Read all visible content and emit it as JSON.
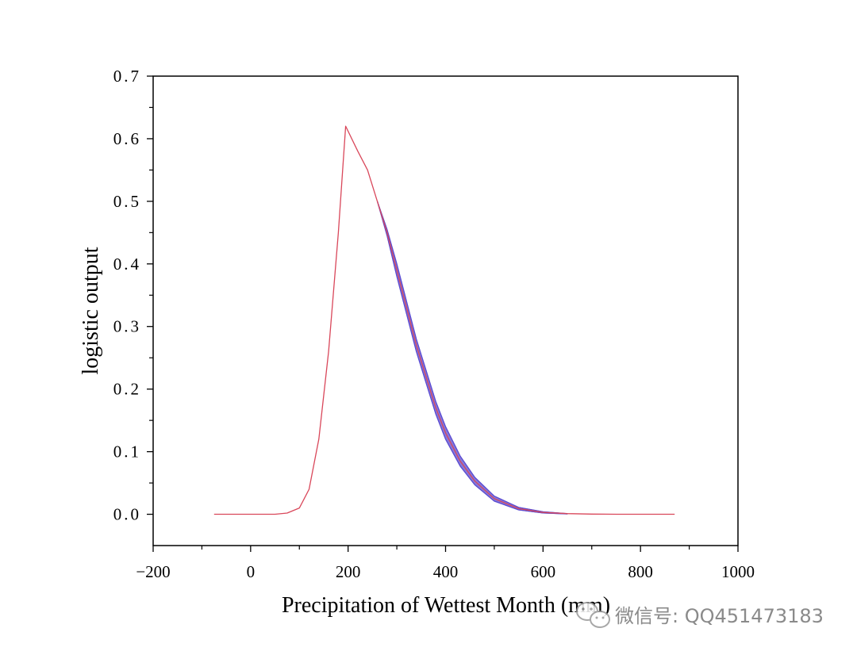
{
  "chart_data": {
    "type": "line",
    "title": "",
    "xlabel": "Precipitation of Wettest Month (mm)",
    "ylabel": "logistic output",
    "xlim": [
      -200,
      1000
    ],
    "ylim": [
      -0.05,
      0.7
    ],
    "x_ticks": [
      -200,
      0,
      200,
      400,
      600,
      800,
      1000
    ],
    "x_tick_labels": [
      "−200",
      "0",
      "200",
      "400",
      "600",
      "800",
      "1000"
    ],
    "y_ticks": [
      0.0,
      0.1,
      0.2,
      0.3,
      0.4,
      0.5,
      0.6,
      0.7
    ],
    "y_tick_labels": [
      "0.0",
      "0.1",
      "0.2",
      "0.3",
      "0.4",
      "0.5",
      "0.6",
      "0.7"
    ],
    "grid": false,
    "legend": "none",
    "series": [
      {
        "role": "mean",
        "color": "#d9475a",
        "x": [
          -75,
          0,
          50,
          75,
          100,
          120,
          140,
          160,
          180,
          195,
          220,
          240,
          260,
          280,
          300,
          320,
          340,
          360,
          380,
          400,
          430,
          460,
          500,
          550,
          600,
          650,
          700,
          750,
          800,
          870
        ],
        "y": [
          0.0,
          0.0,
          0.0,
          0.002,
          0.01,
          0.04,
          0.12,
          0.26,
          0.45,
          0.62,
          0.58,
          0.55,
          0.5,
          0.45,
          0.39,
          0.33,
          0.27,
          0.22,
          0.17,
          0.13,
          0.085,
          0.053,
          0.025,
          0.009,
          0.003,
          0.001,
          0.0003,
          0.0001,
          0.0,
          0.0
        ]
      },
      {
        "role": "upper",
        "color": "#5b4bd0",
        "x": [
          260,
          280,
          300,
          320,
          340,
          360,
          380,
          400,
          430,
          460,
          500,
          550,
          600,
          650
        ],
        "y": [
          0.5,
          0.455,
          0.4,
          0.34,
          0.28,
          0.23,
          0.18,
          0.14,
          0.093,
          0.059,
          0.029,
          0.011,
          0.004,
          0.001
        ]
      },
      {
        "role": "lower",
        "color": "#5b4bd0",
        "x": [
          260,
          280,
          300,
          320,
          340,
          360,
          380,
          400,
          430,
          460,
          500,
          550,
          600,
          650
        ],
        "y": [
          0.5,
          0.445,
          0.38,
          0.32,
          0.26,
          0.21,
          0.16,
          0.12,
          0.077,
          0.047,
          0.021,
          0.007,
          0.002,
          0.0005
        ]
      }
    ]
  },
  "watermark": {
    "text": "微信号: QQ451473183",
    "icon": "wechat-icon"
  }
}
